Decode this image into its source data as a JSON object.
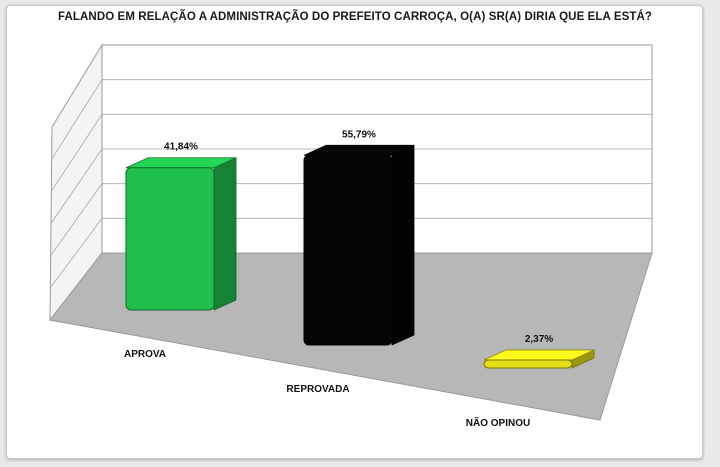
{
  "chart_data": {
    "type": "bar",
    "title": "FALANDO EM RELAÇÃO A ADMINISTRAÇÃO DO PREFEITO CARROÇA, O(A) SR(A) DIRIA QUE ELA ESTÁ?",
    "categories": [
      "APROVA",
      "REPROVADA",
      "NÃO OPINOU"
    ],
    "values": [
      41.84,
      55.79,
      2.37
    ],
    "data_labels": [
      "41,84%",
      "55,79%",
      "2,37%"
    ],
    "colors": [
      "#1fbf4c",
      "#050505",
      "#e3de16"
    ],
    "ylim": [
      0,
      60
    ],
    "grid": true,
    "legend": "none",
    "style": "3d-column"
  }
}
